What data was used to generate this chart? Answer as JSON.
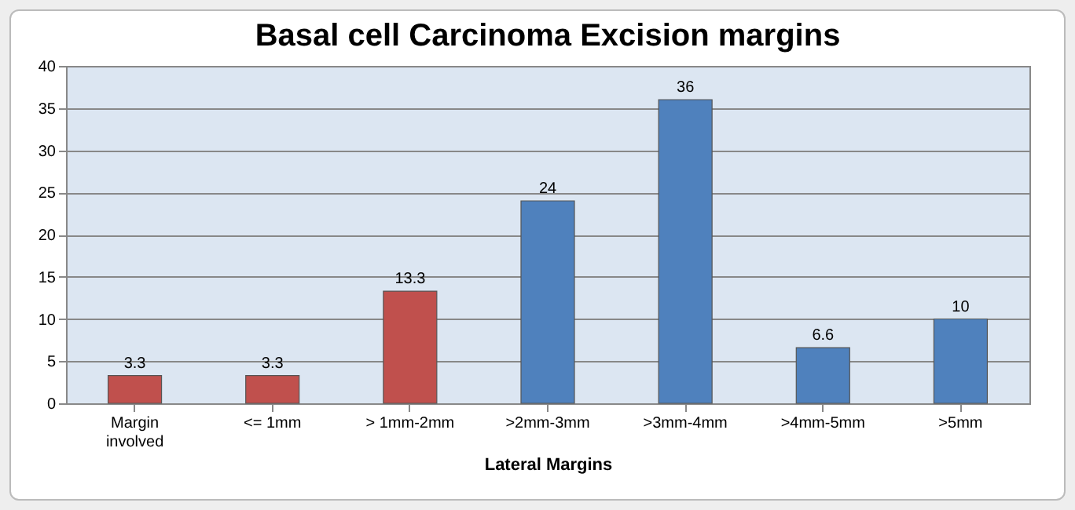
{
  "chart_data": {
    "type": "bar",
    "title": "Basal cell Carcinoma Excision margins",
    "xlabel": "Lateral Margins",
    "categories": [
      "Margin involved",
      "<= 1mm",
      "> 1mm-2mm",
      ">2mm-3mm",
      ">3mm-4mm",
      ">4mm-5mm",
      ">5mm"
    ],
    "values": [
      3.3,
      3.3,
      13.3,
      24,
      36,
      6.6,
      10
    ],
    "colors": [
      "#c0504d",
      "#c0504d",
      "#c0504d",
      "#4f81bd",
      "#4f81bd",
      "#4f81bd",
      "#4f81bd"
    ],
    "ylim": [
      0,
      40
    ],
    "yticks": [
      0,
      5,
      10,
      15,
      20,
      25,
      30,
      35,
      40
    ],
    "grid": "y",
    "data_labels": true
  }
}
